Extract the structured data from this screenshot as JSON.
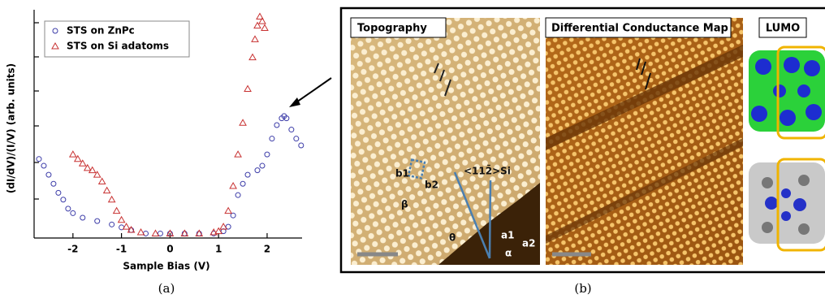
{
  "chart_data": {
    "type": "scatter",
    "xlabel": "Sample Bias (V)",
    "ylabel": "(dI/dV)/(I/V)  (arb. units)",
    "xlim": [
      -2.8,
      2.72
    ],
    "ylim": [
      0,
      1
    ],
    "xticks": [
      -2,
      -1,
      0,
      1,
      2
    ],
    "legend": "upper left",
    "series": [
      {
        "name": "STS on ZnPc",
        "color": "#3c3ca8",
        "marker": "circle",
        "x": [
          -2.7,
          -2.6,
          -2.5,
          -2.4,
          -2.3,
          -2.2,
          -2.1,
          -2,
          -1.8,
          -1.5,
          -1.2,
          -1,
          -0.8,
          -0.5,
          -0.2,
          0,
          0.3,
          0.6,
          0.9,
          1.1,
          1.2,
          1.3,
          1.4,
          1.5,
          1.6,
          1.8,
          1.9,
          2,
          2.1,
          2.2,
          2.3,
          2.35,
          2.4,
          2.5,
          2.6,
          2.7
        ],
        "values": [
          0.35,
          0.32,
          0.28,
          0.24,
          0.2,
          0.17,
          0.13,
          0.11,
          0.09,
          0.075,
          0.06,
          0.047,
          0.035,
          0.02,
          0.02,
          0.02,
          0.02,
          0.02,
          0.02,
          0.03,
          0.05,
          0.1,
          0.19,
          0.24,
          0.28,
          0.3,
          0.32,
          0.37,
          0.44,
          0.5,
          0.53,
          0.54,
          0.53,
          0.48,
          0.44,
          0.41
        ]
      },
      {
        "name": "STS on Si adatoms",
        "color": "#c83232",
        "marker": "triangle",
        "x": [
          -2,
          -1.9,
          -1.8,
          -1.7,
          -1.6,
          -1.5,
          -1.4,
          -1.3,
          -1.2,
          -1.1,
          -1,
          -0.9,
          -0.8,
          -0.6,
          -0.3,
          0,
          0.3,
          0.6,
          0.9,
          1,
          1.1,
          1.2,
          1.3,
          1.4,
          1.5,
          1.6,
          1.7,
          1.75,
          1.8,
          1.85,
          1.9,
          1.95
        ],
        "values": [
          0.37,
          0.35,
          0.33,
          0.31,
          0.3,
          0.28,
          0.25,
          0.21,
          0.17,
          0.12,
          0.08,
          0.05,
          0.036,
          0.025,
          0.02,
          0.02,
          0.02,
          0.02,
          0.025,
          0.03,
          0.05,
          0.12,
          0.23,
          0.37,
          0.51,
          0.66,
          0.8,
          0.88,
          0.94,
          0.98,
          0.96,
          0.93
        ]
      }
    ]
  },
  "captions": {
    "a": "(a)",
    "b": "(b)"
  },
  "panel_b": {
    "topography": {
      "title": "Topography",
      "labels": [
        "b1",
        "b2",
        "β",
        "<112̄>Si",
        "θ",
        "a1",
        "a2",
        "α"
      ]
    },
    "conductance_map": {
      "title": "Differential Conductance Map"
    },
    "lumo": {
      "title": "LUMO"
    }
  }
}
